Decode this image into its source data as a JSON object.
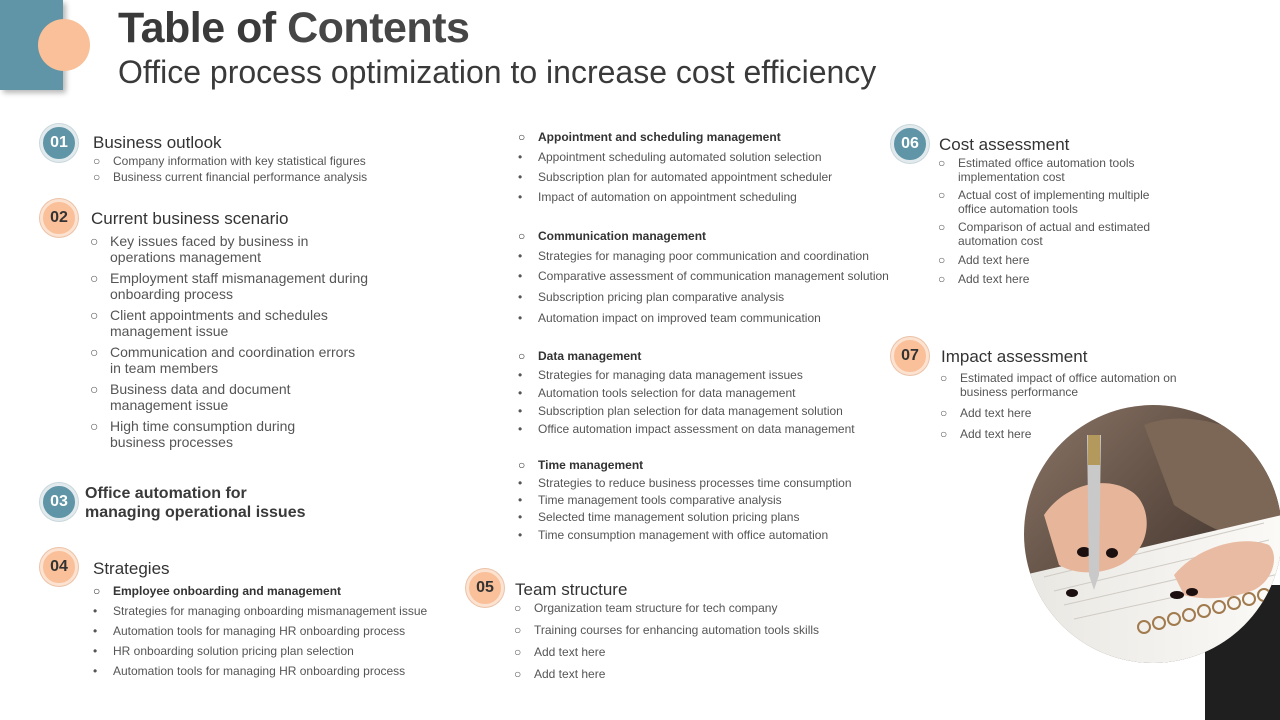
{
  "header": {
    "title_bold": "Table of",
    "title_rest": "Contents",
    "subtitle": "Office process optimization to increase cost efficiency"
  },
  "colors": {
    "teal": "#5f95a6",
    "peach": "#f9c099",
    "text": "#404040"
  },
  "sections": {
    "s01": {
      "number": "01",
      "title": "Business outlook",
      "items": [
        "Company information with key statistical figures",
        "Business current financial performance analysis"
      ]
    },
    "s02": {
      "number": "02",
      "title": "Current business scenario",
      "items": [
        [
          "Key issues faced by business in",
          "operations management"
        ],
        [
          "Employment staff mismanagement during",
          "onboarding process"
        ],
        [
          "Client appointments and schedules",
          "management issue"
        ],
        [
          "Communication and coordination errors",
          "in team members"
        ],
        [
          "Business data and document",
          "management issue"
        ],
        [
          "High time consumption during",
          "business processes"
        ]
      ]
    },
    "s03": {
      "number": "03",
      "title_line1": "Office automation for",
      "title_line2": "managing operational issues",
      "groups": [
        {
          "heading": "Appointment and scheduling management",
          "items": [
            "Appointment scheduling automated solution selection",
            "Subscription plan for automated appointment scheduler",
            "Impact of automation on appointment scheduling"
          ]
        },
        {
          "heading": "Communication management",
          "items": [
            "Strategies for managing poor communication and coordination",
            "Comparative assessment of communication management solution",
            "Subscription pricing plan comparative analysis",
            "Automation impact on improved team communication"
          ]
        },
        {
          "heading": "Data management",
          "items": [
            "Strategies for managing data management issues",
            "Automation tools selection for data management",
            "Subscription plan selection for data management solution",
            "Office automation impact assessment on data management"
          ]
        },
        {
          "heading": "Time management",
          "items": [
            "Strategies to reduce business processes time consumption",
            "Time management tools comparative analysis",
            "Selected time management solution pricing plans",
            "Time consumption management with office automation"
          ]
        }
      ]
    },
    "s04": {
      "number": "04",
      "title": "Strategies",
      "heading": "Employee onboarding and management",
      "items": [
        "Strategies for managing onboarding mismanagement issue",
        "Automation tools for managing HR onboarding process",
        "HR onboarding solution pricing plan selection",
        "Automation tools for managing HR onboarding process"
      ]
    },
    "s05": {
      "number": "05",
      "title": "Team structure",
      "items": [
        "Organization team structure for tech company",
        "Training courses for enhancing automation tools skills",
        "Add text here",
        "Add text here"
      ]
    },
    "s06": {
      "number": "06",
      "title": "Cost assessment",
      "items": [
        [
          "Estimated office automation tools",
          "implementation cost"
        ],
        [
          "Actual cost of implementing multiple",
          "office automation tools"
        ],
        [
          "Comparison of actual and estimated",
          "automation cost"
        ],
        [
          "Add text here"
        ],
        [
          "Add text here"
        ]
      ]
    },
    "s07": {
      "number": "07",
      "title": "Impact assessment",
      "items": [
        [
          "Estimated impact of office automation on",
          "business performance"
        ],
        [
          "Add text here"
        ],
        [
          "Add text here"
        ]
      ]
    }
  },
  "markers": {
    "circle": "○",
    "dot": "•"
  },
  "image": {
    "icon": "writing-hand-photo"
  }
}
